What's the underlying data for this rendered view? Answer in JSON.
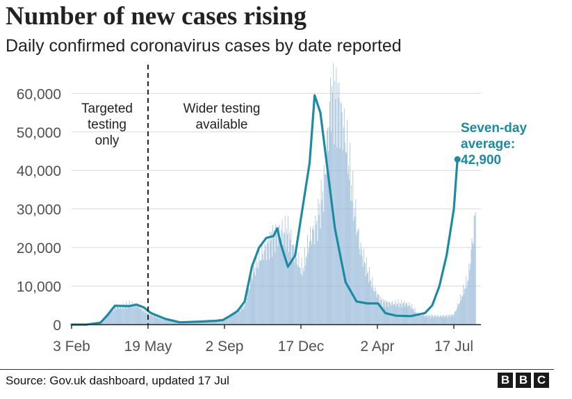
{
  "chart_data": {
    "type": "bar",
    "title": "Number of new cases rising",
    "subtitle": "Daily confirmed coronavirus cases by date reported",
    "xlabel": "",
    "ylabel": "",
    "ylim": [
      0,
      68000
    ],
    "y_ticks": [
      0,
      10000,
      20000,
      30000,
      40000,
      50000,
      60000
    ],
    "y_tick_labels": [
      "0",
      "10,000",
      "20,000",
      "30,000",
      "40,000",
      "50,000",
      "60,000"
    ],
    "x_tick_labels": [
      "3 Feb",
      "19 May",
      "2 Sep",
      "17 Dec",
      "2 Apr",
      "17 Jul"
    ],
    "x_tick_days": [
      0,
      106,
      212,
      318,
      424,
      530
    ],
    "day0": "3 Feb",
    "legend": "none",
    "grid": true,
    "series": [
      {
        "name": "Daily confirmed cases",
        "kind": "bars",
        "color": "#8fb4d6",
        "note": "values sampled every 10 days (day index = 0,10,20,...)",
        "sample_step": 10,
        "values": [
          0,
          0,
          0,
          100,
          600,
          3000,
          4800,
          4500,
          5300,
          5100,
          3800,
          2500,
          2000,
          1500,
          1000,
          700,
          600,
          700,
          900,
          1200,
          1100,
          1400,
          2500,
          3400,
          5000,
          13000,
          17000,
          20000,
          23000,
          24000,
          24000,
          18000,
          14000,
          22000,
          26000,
          36000,
          60000,
          58000,
          48000,
          33000,
          20000,
          14000,
          9000,
          6000,
          5500,
          5500,
          5500,
          5000,
          2700,
          2300,
          2300,
          2200,
          2200,
          2600,
          7000,
          12000,
          29000
        ]
      },
      {
        "name": "Seven-day average",
        "kind": "line",
        "color": "#1b8aa3",
        "points": [
          [
            0,
            0
          ],
          [
            20,
            0
          ],
          [
            40,
            500
          ],
          [
            50,
            2500
          ],
          [
            60,
            4900
          ],
          [
            80,
            4800
          ],
          [
            90,
            5200
          ],
          [
            100,
            4500
          ],
          [
            110,
            3000
          ],
          [
            130,
            1500
          ],
          [
            150,
            600
          ],
          [
            180,
            800
          ],
          [
            200,
            1000
          ],
          [
            210,
            1200
          ],
          [
            220,
            2300
          ],
          [
            230,
            3500
          ],
          [
            240,
            6000
          ],
          [
            250,
            15000
          ],
          [
            260,
            20000
          ],
          [
            270,
            22500
          ],
          [
            280,
            23000
          ],
          [
            285,
            25000
          ],
          [
            290,
            21000
          ],
          [
            300,
            15000
          ],
          [
            310,
            18000
          ],
          [
            320,
            30000
          ],
          [
            330,
            42000
          ],
          [
            337,
            59500
          ],
          [
            345,
            55000
          ],
          [
            355,
            40000
          ],
          [
            365,
            25000
          ],
          [
            380,
            11000
          ],
          [
            395,
            6000
          ],
          [
            410,
            5500
          ],
          [
            425,
            5500
          ],
          [
            435,
            3000
          ],
          [
            450,
            2300
          ],
          [
            470,
            2200
          ],
          [
            490,
            3000
          ],
          [
            500,
            5000
          ],
          [
            510,
            10000
          ],
          [
            520,
            18000
          ],
          [
            530,
            30000
          ],
          [
            535,
            42900
          ]
        ]
      }
    ],
    "annotations": [
      {
        "text_lines": [
          "Targeted",
          "testing",
          "only"
        ],
        "at_day": 106,
        "kind": "vertical-dashed-divider"
      },
      {
        "text_lines": [
          "Wider testing",
          "available"
        ]
      },
      {
        "text_lines": [
          "Seven-day",
          "average:",
          "42,900"
        ],
        "value": 42900,
        "at_day": 535
      }
    ]
  },
  "source": "Source: Gov.uk dashboard, updated 17 Jul",
  "logo_letters": [
    "B",
    "B",
    "C"
  ]
}
